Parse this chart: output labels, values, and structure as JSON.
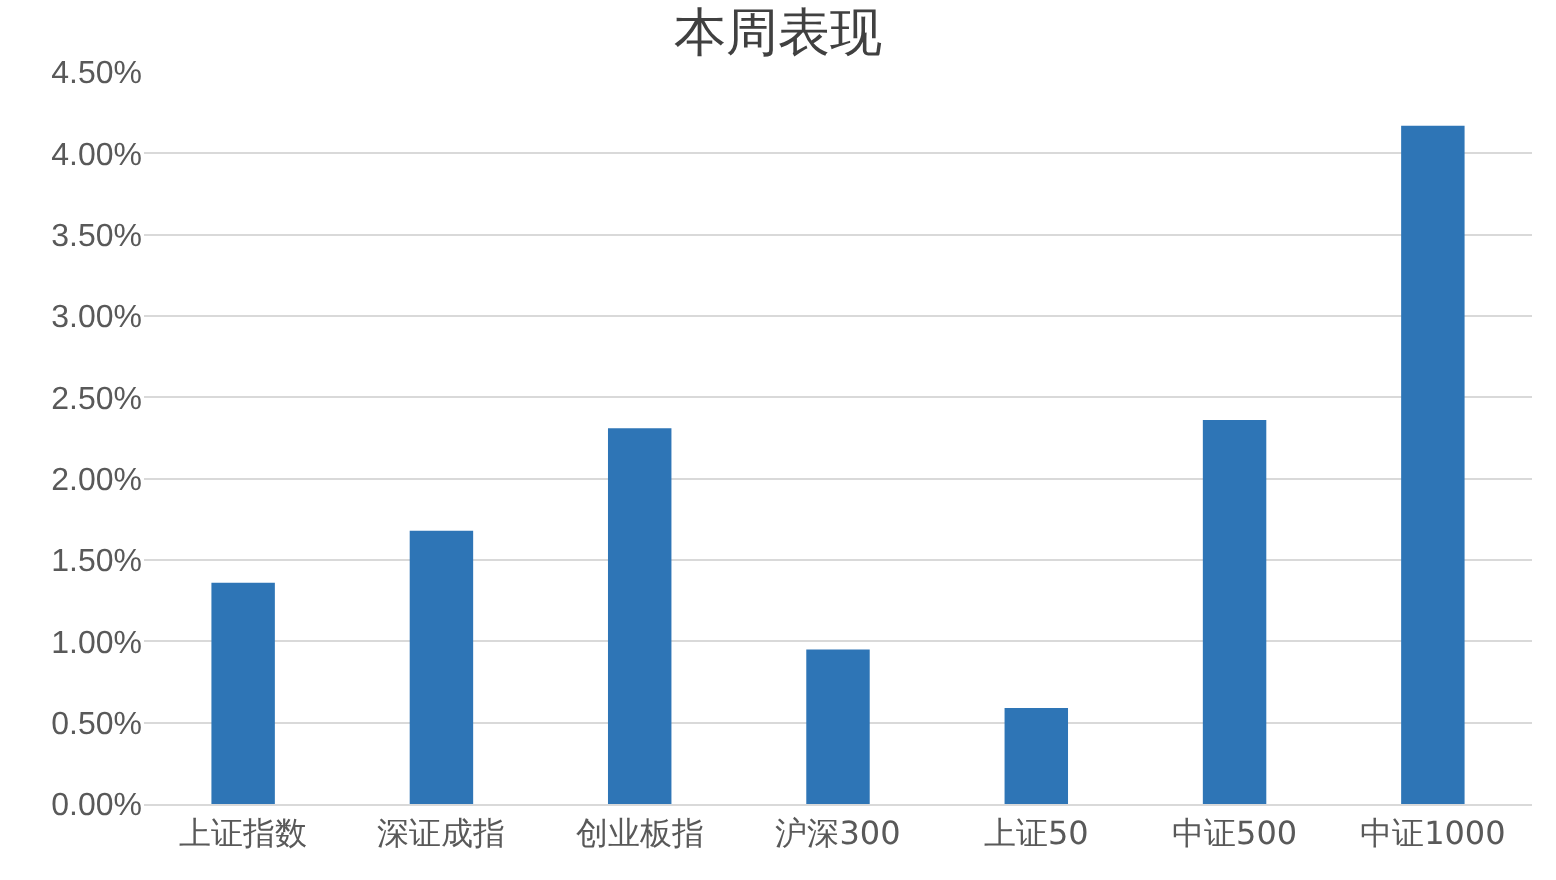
{
  "chart_data": {
    "type": "bar",
    "title": "本周表现",
    "categories": [
      "上证指数",
      "深证成指",
      "创业板指",
      "沪深300",
      "上证50",
      "中证500",
      "中证1000"
    ],
    "values": [
      1.36,
      1.68,
      2.31,
      0.95,
      0.59,
      2.36,
      4.17
    ],
    "color": "#2e75b6",
    "ylim": [
      0,
      4.5
    ],
    "yticks": [
      {
        "value": 0,
        "label": "0.00%"
      },
      {
        "value": 0.5,
        "label": "0.50%"
      },
      {
        "value": 1,
        "label": "1.00%"
      },
      {
        "value": 1.5,
        "label": "1.50%"
      },
      {
        "value": 2,
        "label": "2.00%"
      },
      {
        "value": 2.5,
        "label": "2.50%"
      },
      {
        "value": 3,
        "label": "3.00%"
      },
      {
        "value": 3.5,
        "label": "3.50%"
      },
      {
        "value": 4,
        "label": "4.00%"
      },
      {
        "value": 4.5,
        "label": "4.50%"
      }
    ],
    "grid": "y"
  }
}
